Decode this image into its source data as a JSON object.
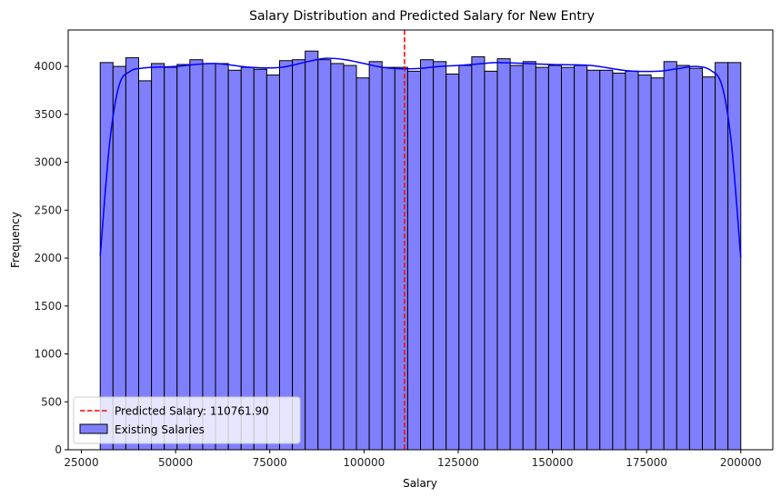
{
  "chart_data": {
    "type": "bar",
    "title": "Salary Distribution and Predicted Salary for New Entry",
    "xlabel": "Salary",
    "ylabel": "Frequency",
    "xlim": [
      21500,
      208500
    ],
    "ylim": [
      0,
      4380
    ],
    "x_ticks": [
      25000,
      50000,
      75000,
      100000,
      125000,
      150000,
      175000,
      200000
    ],
    "y_ticks": [
      0,
      500,
      1000,
      1500,
      2000,
      2500,
      3000,
      3500,
      4000
    ],
    "bins": {
      "start": 30000,
      "end": 200000,
      "count": 50,
      "counts": [
        4040,
        4000,
        4090,
        3850,
        4030,
        3990,
        4020,
        4070,
        4030,
        4030,
        3960,
        3990,
        3970,
        3910,
        4060,
        4070,
        4160,
        4070,
        4030,
        4010,
        3880,
        4050,
        3990,
        3990,
        3950,
        4070,
        4050,
        3920,
        4010,
        4100,
        3950,
        4080,
        4010,
        4050,
        3990,
        4010,
        3990,
        4010,
        3960,
        3960,
        3930,
        3950,
        3910,
        3880,
        4050,
        4010,
        3980,
        3890,
        4040,
        4040
      ]
    },
    "kde": {
      "x": [
        30000,
        32500,
        35000,
        38000,
        42000,
        50000,
        60000,
        70000,
        78000,
        85000,
        90000,
        95000,
        100000,
        105000,
        110000,
        115000,
        120000,
        125000,
        130000,
        135000,
        140000,
        150000,
        160000,
        170000,
        178000,
        183000,
        188000,
        192000,
        195000,
        197500,
        200000
      ],
      "y": [
        2020,
        3200,
        3800,
        3950,
        3985,
        4000,
        4030,
        3990,
        3990,
        4050,
        4085,
        4070,
        4030,
        3990,
        3975,
        3980,
        4000,
        4010,
        4025,
        4040,
        4035,
        4020,
        4010,
        3955,
        3950,
        3975,
        4000,
        3960,
        3800,
        3200,
        2000
      ]
    },
    "predicted": {
      "value": 110761.9,
      "label": "Predicted Salary: 110761.90"
    },
    "colors": {
      "bar_fill": "#8080ff",
      "bar_edge": "#000000",
      "kde_line": "#0000ff",
      "predicted_line": "#ff0000"
    },
    "grid": false,
    "legend": {
      "placement": "lower-left",
      "entries": [
        "Predicted Salary: 110761.90",
        "Existing Salaries"
      ]
    }
  }
}
